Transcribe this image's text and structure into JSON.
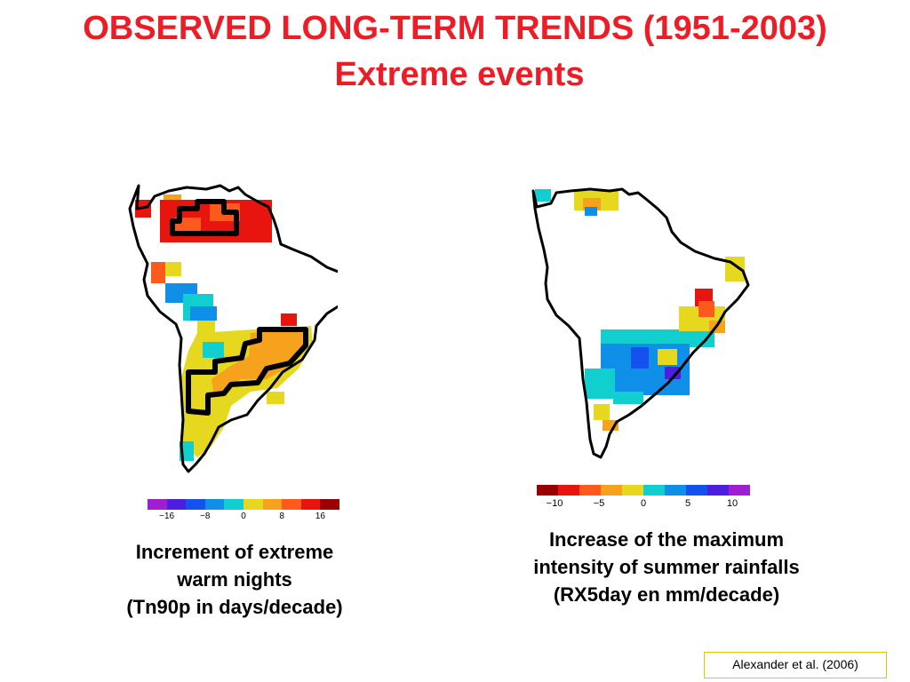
{
  "slide": {
    "title": "OBSERVED LONG-TERM TRENDS (1951-2003)",
    "subtitle": "Extreme events",
    "citation": "Alexander et al. (2006)"
  },
  "colors": {
    "title": "#ee1c25",
    "citation_border": "#e3c800",
    "coast": "#000000"
  },
  "scale_colors": [
    "#9b0000",
    "#e8150e",
    "#ff5a1e",
    "#f7a21c",
    "#e6d81e",
    "#11cfcf",
    "#0f8fe8",
    "#1551ee",
    "#4b1ee0",
    "#9e1fd2"
  ],
  "maps": [
    {
      "id": "left",
      "variable": "Tn90p",
      "unit": "days/decade",
      "colorbar": {
        "order": "reversed",
        "ticks": [
          {
            "label": "−16",
            "value": -16
          },
          {
            "label": "−8",
            "value": -8
          },
          {
            "label": "0",
            "value": 0
          },
          {
            "label": "8",
            "value": 8
          },
          {
            "label": "16",
            "value": 16
          }
        ],
        "range": [
          -20,
          20
        ]
      },
      "caption": [
        "Increment of extreme",
        "warm nights",
        "(Tn90p  in days/decade)"
      ]
    },
    {
      "id": "right",
      "variable": "RX5day",
      "unit": "mm/decade",
      "colorbar": {
        "order": "normal",
        "ticks": [
          {
            "label": "−10",
            "value": -10
          },
          {
            "label": "−5",
            "value": -5
          },
          {
            "label": "0",
            "value": 0
          },
          {
            "label": "5",
            "value": 5
          },
          {
            "label": "10",
            "value": 10
          }
        ],
        "range": [
          -12,
          12
        ]
      },
      "caption": [
        "Increase of the maximum",
        "intensity of summer rainfalls",
        "(RX5day en mm/decade)"
      ]
    }
  ]
}
